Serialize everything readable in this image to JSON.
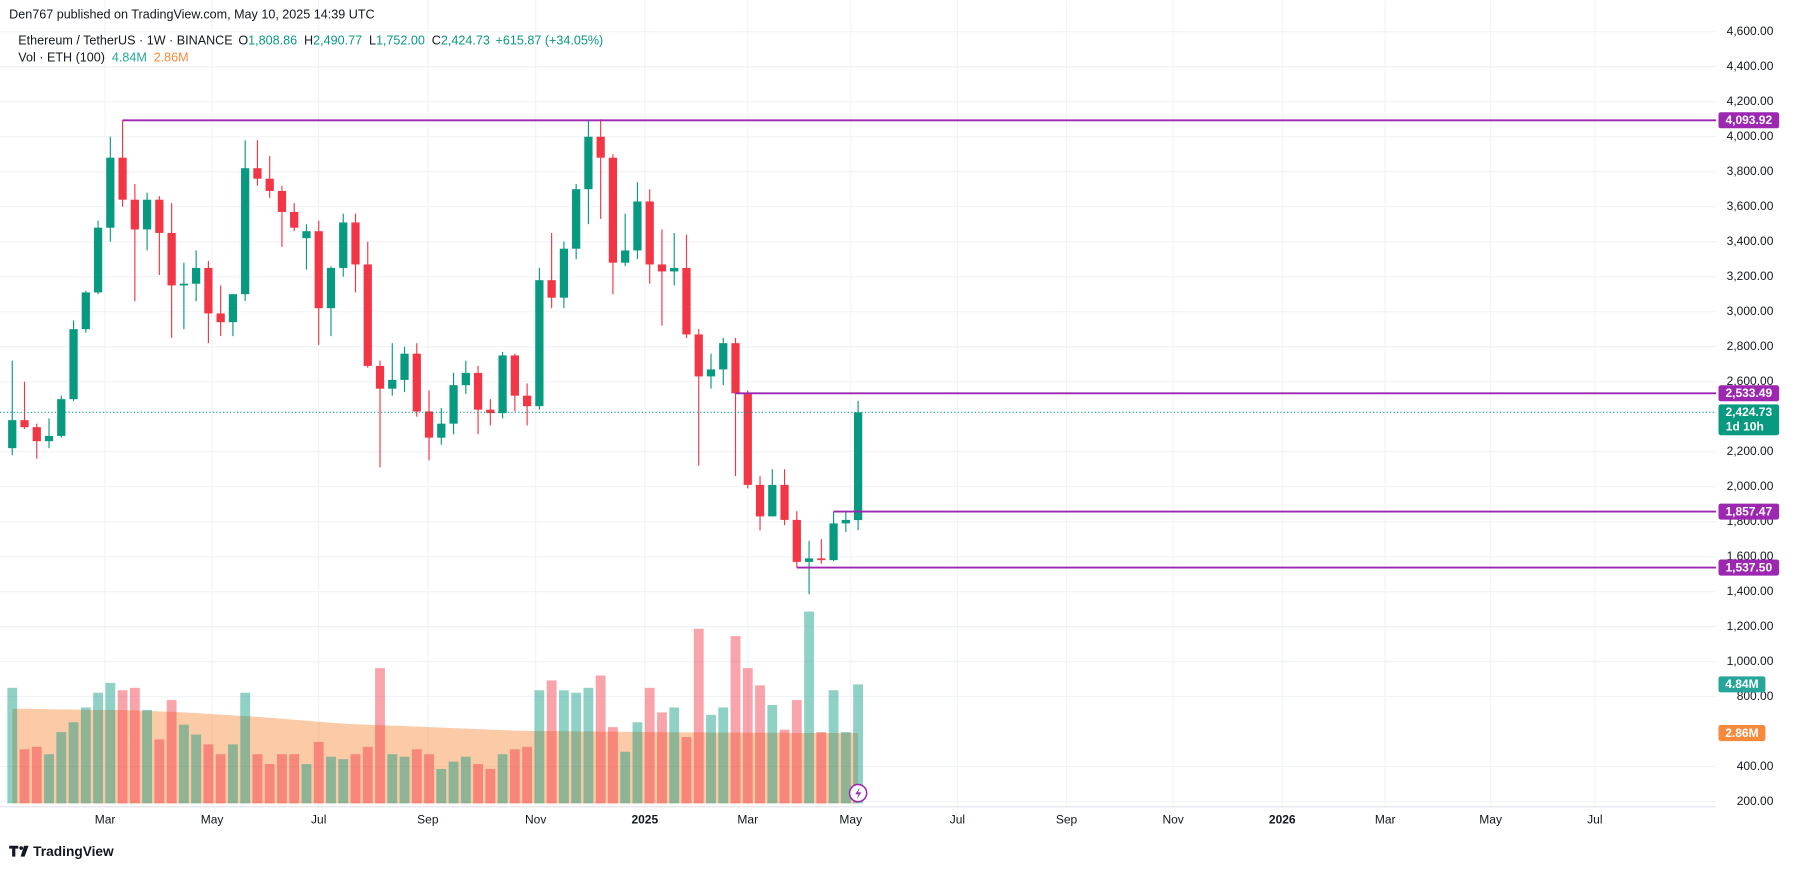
{
  "header": {
    "author_line": "Den767 published on TradingView.com, May 10, 2025 14:39 UTC"
  },
  "footer": {
    "brand": "TradingView"
  },
  "chart_data": {
    "type": "candlestick",
    "legend": {
      "symbol": "Ethereum / TetherUS · 1W · BINANCE",
      "ohlc": [
        {
          "key": "O",
          "value": "1,808.86"
        },
        {
          "key": "H",
          "value": "2,490.77"
        },
        {
          "key": "L",
          "value": "1,752.00"
        },
        {
          "key": "C",
          "value": "2,424.73"
        }
      ],
      "change": "+615.87 (+34.05%)",
      "volume_title": "Vol · ETH (100)"
    },
    "open": [
      2220,
      2380,
      2340,
      2260,
      2290,
      2500,
      2900,
      3110,
      3480,
      3880,
      3640,
      3470,
      3640,
      3450,
      3150,
      3160,
      3250,
      2990,
      2940,
      3100,
      3820,
      3760,
      3690,
      3570,
      3420,
      3460,
      3020,
      3250,
      3510,
      3270,
      2690,
      2560,
      2610,
      2760,
      2430,
      2280,
      2360,
      2580,
      2650,
      2440,
      2420,
      2750,
      2520,
      2460,
      3180,
      3080,
      3360,
      3700,
      4000,
      3880,
      3280,
      3350,
      3630,
      3270,
      3230,
      3250,
      2870,
      2630,
      2670,
      2820,
      2533.49,
      2010,
      1830,
      2010,
      1810,
      1570,
      1590,
      1580,
      1790,
      1808.86
    ],
    "high": [
      2720,
      2600,
      2360,
      2390,
      2520,
      2950,
      3120,
      3520,
      4000,
      4093.92,
      3730,
      3680,
      3660,
      3620,
      3280,
      3350,
      3290,
      3150,
      3100,
      3980,
      3980,
      3890,
      3720,
      3620,
      3500,
      3520,
      3260,
      3560,
      3560,
      3400,
      2720,
      2820,
      2800,
      2820,
      2550,
      2450,
      2650,
      2720,
      2690,
      2500,
      2770,
      2760,
      2590,
      3250,
      3450,
      3400,
      3730,
      4098,
      4100,
      3900,
      3560,
      3740,
      3700,
      3470,
      3450,
      3440,
      2900,
      2760,
      2850,
      2850,
      2550,
      2060,
      2100,
      2100,
      1860,
      1690,
      1700,
      1857.47,
      1860,
      2490.77
    ],
    "low": [
      2180,
      2330,
      2160,
      2220,
      2280,
      2490,
      2880,
      3100,
      3400,
      3600,
      3060,
      3350,
      3210,
      2850,
      2900,
      3060,
      2820,
      2860,
      2860,
      3060,
      3720,
      3650,
      3370,
      3460,
      3240,
      2810,
      2860,
      3200,
      3110,
      2680,
      2110,
      2520,
      2540,
      2400,
      2150,
      2240,
      2300,
      2530,
      2300,
      2350,
      2390,
      2430,
      2350,
      2440,
      3020,
      3020,
      3300,
      3500,
      3530,
      3100,
      3260,
      3300,
      3160,
      2920,
      3150,
      2850,
      2120,
      2560,
      2580,
      2060,
      1990,
      1750,
      1830,
      1780,
      1537.5,
      1385,
      1560,
      1575,
      1740,
      1752
    ],
    "close": [
      2380,
      2340,
      2260,
      2290,
      2500,
      2900,
      3110,
      3480,
      3880,
      3640,
      3470,
      3640,
      3450,
      3150,
      3160,
      3250,
      2990,
      2940,
      3100,
      3820,
      3760,
      3690,
      3570,
      3480,
      3460,
      3020,
      3250,
      3510,
      3270,
      2690,
      2560,
      2610,
      2760,
      2430,
      2280,
      2360,
      2580,
      2650,
      2440,
      2420,
      2750,
      2520,
      2460,
      3180,
      3080,
      3360,
      3700,
      4000,
      3880,
      3280,
      3350,
      3630,
      3270,
      3230,
      3250,
      2870,
      2630,
      2670,
      2820,
      2533.49,
      2010,
      1830,
      2010,
      1810,
      1570,
      1590,
      1580,
      1790,
      1810,
      2424.73
    ],
    "up_color": "#089981",
    "down_color": "#f23645",
    "volume": {
      "values": [
        4.7,
        2.2,
        2.3,
        2.0,
        2.9,
        3.3,
        3.9,
        4.5,
        4.9,
        4.6,
        4.7,
        3.8,
        2.6,
        4.2,
        3.2,
        2.8,
        2.4,
        2.0,
        2.4,
        4.5,
        2.0,
        1.6,
        2.0,
        2.0,
        1.6,
        2.5,
        1.9,
        1.8,
        2.0,
        2.3,
        5.5,
        2.0,
        1.9,
        2.2,
        2.0,
        1.4,
        1.7,
        1.9,
        1.6,
        1.4,
        2.0,
        2.2,
        2.3,
        4.6,
        5.0,
        4.6,
        4.5,
        4.7,
        5.2,
        3.1,
        2.1,
        3.3,
        4.7,
        3.7,
        3.9,
        2.7,
        7.1,
        3.6,
        3.9,
        6.8,
        5.5,
        4.8,
        4.0,
        3.0,
        4.2,
        7.8,
        2.9,
        4.6,
        2.9,
        4.84
      ],
      "ma": [
        3.85,
        3.85,
        3.84,
        3.83,
        3.82,
        3.82,
        3.81,
        3.8,
        3.8,
        3.79,
        3.78,
        3.76,
        3.74,
        3.72,
        3.7,
        3.67,
        3.64,
        3.61,
        3.58,
        3.55,
        3.52,
        3.48,
        3.44,
        3.4,
        3.36,
        3.32,
        3.28,
        3.25,
        3.22,
        3.2,
        3.18,
        3.16,
        3.14,
        3.12,
        3.1,
        3.08,
        3.06,
        3.04,
        3.02,
        3.0,
        2.98,
        2.96,
        2.95,
        2.94,
        2.94,
        2.94,
        2.93,
        2.93,
        2.92,
        2.92,
        2.91,
        2.91,
        2.9,
        2.9,
        2.89,
        2.89,
        2.89,
        2.88,
        2.88,
        2.88,
        2.87,
        2.87,
        2.87,
        2.87,
        2.86,
        2.86,
        2.86,
        2.86,
        2.86,
        2.86
      ],
      "value_label": "4.84M",
      "ma_label": "2.86M",
      "value_color": "#26a69a",
      "ma_color": "#f7893b"
    },
    "y2lim": [
      0,
      10
    ],
    "xlim": [
      -1,
      139
    ],
    "xticks": [
      {
        "value": 7.57,
        "label": "Mar"
      },
      {
        "value": 16.3,
        "label": "May"
      },
      {
        "value": 25,
        "label": "Jul"
      },
      {
        "value": 33.9,
        "label": "Sep"
      },
      {
        "value": 42.7,
        "label": "Nov"
      },
      {
        "value": 51.6,
        "label": "2025"
      },
      {
        "value": 60,
        "label": "Mar"
      },
      {
        "value": 68.4,
        "label": "May"
      },
      {
        "value": 77.1,
        "label": "Jul"
      },
      {
        "value": 86,
        "label": "Sep"
      },
      {
        "value": 94.7,
        "label": "Nov"
      },
      {
        "value": 103.6,
        "label": "2026"
      },
      {
        "value": 112,
        "label": "Mar"
      },
      {
        "value": 120.6,
        "label": "May"
      },
      {
        "value": 129.1,
        "label": "Jul"
      }
    ],
    "ylim": [
      170,
      4780
    ],
    "yticks": [
      {
        "value": 4600,
        "label": "4,600.00"
      },
      {
        "value": 4400,
        "label": "4,400.00"
      },
      {
        "value": 4200,
        "label": "4,200.00"
      },
      {
        "value": 4000,
        "label": "4,000.00"
      },
      {
        "value": 3800,
        "label": "3,800.00"
      },
      {
        "value": 3600,
        "label": "3,600.00"
      },
      {
        "value": 3400,
        "label": "3,400.00"
      },
      {
        "value": 3200,
        "label": "3,200.00"
      },
      {
        "value": 3000,
        "label": "3,000.00"
      },
      {
        "value": 2800,
        "label": "2,800.00"
      },
      {
        "value": 2600,
        "label": "2,600.00"
      },
      {
        "value": 2200,
        "label": "2,200.00"
      },
      {
        "value": 2000,
        "label": "2,000.00"
      },
      {
        "value": 1800,
        "label": "1,800.00"
      },
      {
        "value": 1600,
        "label": "1,600.00"
      },
      {
        "value": 1400,
        "label": "1,400.00"
      },
      {
        "value": 1200,
        "label": "1,200.00"
      },
      {
        "value": 1000,
        "label": "1,000.00"
      },
      {
        "value": 800,
        "label": "800.00"
      },
      {
        "value": 400,
        "label": "400.00"
      },
      {
        "value": 200,
        "label": "200.00"
      }
    ],
    "grid": true,
    "last_price_label": "2,424.73",
    "countdown": "1d 10h",
    "hlines": {
      "color": "#9c27b0",
      "levels": [
        {
          "value": 4093.92,
          "label": "4,093.92"
        },
        {
          "value": 2533.49,
          "label": "2,533.49"
        },
        {
          "value": 1857.47,
          "label": "1,857.47"
        },
        {
          "value": 1537.5,
          "label": "1,537.50"
        }
      ]
    }
  }
}
